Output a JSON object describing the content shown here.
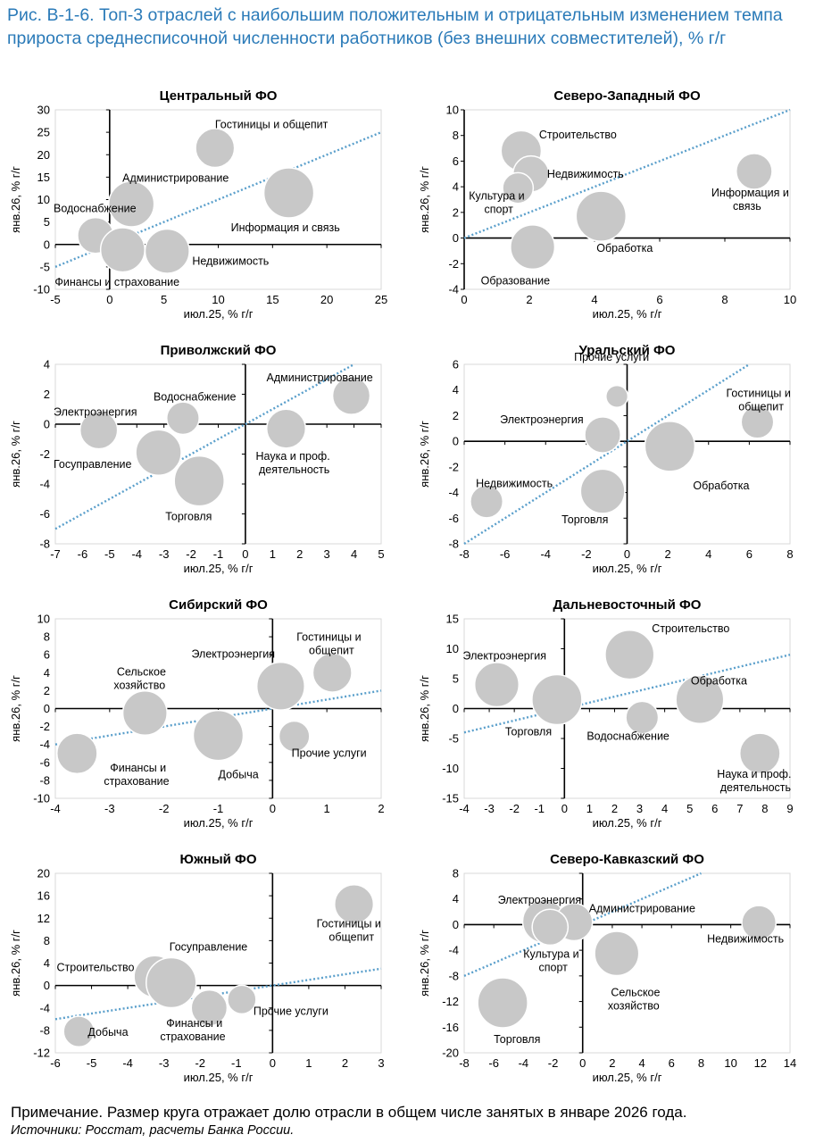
{
  "header": {
    "title": "Рис. В-1-6. Топ-3 отраслей с наибольшим положительным и отрицательным изменением темпа прироста среднесписочной численности работников (без внешних совместителей), % г/г"
  },
  "footer": {
    "note": "Примечание. Размер круга отражает долю отрасли в общем числе занятых в январе 2026 года.",
    "source": "Источники: Росстат, расчеты Банка России."
  },
  "colors": {
    "bubble": "#c8c8c8",
    "bubble_stroke": "#ffffff",
    "trend": "#5a9fcb",
    "axis": "#000000",
    "title": "#2a7ab8"
  },
  "chart_data": [
    {
      "type": "scatter",
      "title": "Центральный ФО",
      "xlabel": "июл.25, % г/г",
      "ylabel": "янв.26, % г/г",
      "xlim": [
        -5,
        25
      ],
      "ylim": [
        -10,
        30
      ],
      "xticks": [
        -5,
        0,
        5,
        10,
        15,
        20,
        25
      ],
      "yticks": [
        -10,
        -5,
        0,
        5,
        10,
        15,
        20,
        25,
        30
      ],
      "trend": [
        [
          -5,
          -5
        ],
        [
          25,
          25
        ]
      ],
      "points": [
        {
          "x": 9.7,
          "y": 21.5,
          "size": 0.55,
          "label": "Гостиницы и общепит"
        },
        {
          "x": 2.0,
          "y": 9.0,
          "size": 0.8,
          "label": "Администрирование"
        },
        {
          "x": 16.5,
          "y": 11.5,
          "size": 1.0,
          "label": "Информация и связь"
        },
        {
          "x": -1.3,
          "y": 2.0,
          "size": 0.45,
          "label": "Водоснабжение"
        },
        {
          "x": 1.2,
          "y": -1.2,
          "size": 0.75,
          "label": "Финансы и страхование"
        },
        {
          "x": 5.3,
          "y": -1.5,
          "size": 0.75,
          "label": "Недвижимость"
        }
      ]
    },
    {
      "type": "scatter",
      "title": "Северо-Западный ФО",
      "xlabel": "июл.25, % г/г",
      "ylabel": "янв.26, % г/г",
      "xlim": [
        0,
        10
      ],
      "ylim": [
        -4,
        10
      ],
      "xticks": [
        0,
        2,
        4,
        6,
        8,
        10
      ],
      "yticks": [
        -4,
        -2,
        0,
        2,
        4,
        6,
        8,
        10
      ],
      "trend": [
        [
          0,
          0
        ],
        [
          10,
          10
        ]
      ],
      "points": [
        {
          "x": 1.75,
          "y": 6.8,
          "size": 0.6,
          "label": "Строительство"
        },
        {
          "x": 2.05,
          "y": 5.0,
          "size": 0.45,
          "label": "Недвижимость"
        },
        {
          "x": 1.65,
          "y": 3.9,
          "size": 0.3,
          "label": "Культура и спорт"
        },
        {
          "x": 8.9,
          "y": 5.2,
          "size": 0.45,
          "label": "Информация и связь"
        },
        {
          "x": 4.2,
          "y": 1.7,
          "size": 1.0,
          "label": "Обработка"
        },
        {
          "x": 2.1,
          "y": -0.7,
          "size": 0.75,
          "label": "Образование"
        }
      ]
    },
    {
      "type": "scatter",
      "title": "Приволжский ФО",
      "xlabel": "июл.25, % г/г",
      "ylabel": "янв.26, % г/г",
      "xlim": [
        -7,
        5
      ],
      "ylim": [
        -8,
        4
      ],
      "xticks": [
        -7,
        -6,
        -5,
        -4,
        -3,
        -2,
        -1,
        0,
        1,
        2,
        3,
        4,
        5
      ],
      "yticks": [
        -8,
        -6,
        -4,
        -2,
        0,
        2,
        4
      ],
      "trend": [
        [
          -7,
          -7
        ],
        [
          4,
          4
        ]
      ],
      "points": [
        {
          "x": 3.9,
          "y": 1.9,
          "size": 0.5,
          "label": "Администрирование"
        },
        {
          "x": -2.3,
          "y": 0.4,
          "size": 0.35,
          "label": "Водоснабжение"
        },
        {
          "x": -5.4,
          "y": -0.4,
          "size": 0.5,
          "label": "Электроэнергия"
        },
        {
          "x": 1.5,
          "y": -0.3,
          "size": 0.55,
          "label": "Наука и проф. деятельность"
        },
        {
          "x": -3.2,
          "y": -1.9,
          "size": 0.8,
          "label": "Госуправление"
        },
        {
          "x": -1.7,
          "y": -3.8,
          "size": 1.0,
          "label": "Торговля"
        }
      ]
    },
    {
      "type": "scatter",
      "title": "Уральский ФО",
      "xlabel": "июл.25, % г/г",
      "ylabel": "янв.26, % г/г",
      "xlim": [
        -8,
        8
      ],
      "ylim": [
        -8,
        6
      ],
      "xticks": [
        -8,
        -6,
        -4,
        -2,
        0,
        2,
        4,
        6,
        8
      ],
      "yticks": [
        -8,
        -6,
        -4,
        -2,
        0,
        2,
        4,
        6
      ],
      "trend": [
        [
          -8,
          -8
        ],
        [
          6,
          6
        ]
      ],
      "points": [
        {
          "x": -0.5,
          "y": 3.5,
          "size": 0.12,
          "label": "Прочие услуги"
        },
        {
          "x": 6.4,
          "y": 1.5,
          "size": 0.35,
          "label": "Гостиницы и общепит"
        },
        {
          "x": -1.2,
          "y": 0.5,
          "size": 0.45,
          "label": "Электроэнергия"
        },
        {
          "x": 2.1,
          "y": -0.4,
          "size": 1.0,
          "label": "Обработка"
        },
        {
          "x": -6.9,
          "y": -4.7,
          "size": 0.35,
          "label": "Недвижимость"
        },
        {
          "x": -1.2,
          "y": -3.9,
          "size": 0.75,
          "label": "Торговля"
        }
      ]
    },
    {
      "type": "scatter",
      "title": "Сибирский ФО",
      "xlabel": "июл.25, % г/г",
      "ylabel": "янв.26, % г/г",
      "xlim": [
        -4,
        2
      ],
      "ylim": [
        -10,
        10
      ],
      "xticks": [
        -4,
        -3,
        -2,
        -1,
        0,
        1,
        2
      ],
      "yticks": [
        -10,
        -8,
        -6,
        -4,
        -2,
        0,
        2,
        4,
        6,
        8,
        10
      ],
      "trend": [
        [
          -4,
          -4
        ],
        [
          2,
          2
        ]
      ],
      "points": [
        {
          "x": 1.1,
          "y": 4.0,
          "size": 0.55,
          "label": "Гостиницы и общепит"
        },
        {
          "x": 0.15,
          "y": 2.5,
          "size": 0.9,
          "label": "Электроэнергия"
        },
        {
          "x": -2.35,
          "y": -0.5,
          "size": 0.75,
          "label": "Сельское хозяйство"
        },
        {
          "x": -1.0,
          "y": -3.0,
          "size": 1.0,
          "label": "Добыча"
        },
        {
          "x": 0.4,
          "y": -3.1,
          "size": 0.3,
          "label": "Прочие услуги"
        },
        {
          "x": -3.6,
          "y": -5.0,
          "size": 0.6,
          "label": "Финансы и страхование"
        }
      ]
    },
    {
      "type": "scatter",
      "title": "Дальневосточный ФО",
      "xlabel": "июл.25, % г/г",
      "ylabel": "янв.26, % г/г",
      "xlim": [
        -4,
        9
      ],
      "ylim": [
        -15,
        15
      ],
      "xticks": [
        -4,
        -3,
        -2,
        -1,
        0,
        1,
        2,
        3,
        4,
        5,
        6,
        7,
        8,
        9
      ],
      "yticks": [
        -15,
        -10,
        -5,
        0,
        5,
        10,
        15
      ],
      "trend": [
        [
          -4,
          -4
        ],
        [
          9,
          9
        ]
      ],
      "points": [
        {
          "x": 2.6,
          "y": 9.0,
          "size": 0.95,
          "label": "Строительство"
        },
        {
          "x": -2.7,
          "y": 4.0,
          "size": 0.75,
          "label": "Электроэнергия"
        },
        {
          "x": -0.3,
          "y": 1.5,
          "size": 1.0,
          "label": "Торговля"
        },
        {
          "x": 5.4,
          "y": 1.5,
          "size": 0.9,
          "label": "Обработка"
        },
        {
          "x": 3.1,
          "y": -1.5,
          "size": 0.35,
          "label": "Водоснабжение"
        },
        {
          "x": 7.8,
          "y": -7.5,
          "size": 0.6,
          "label": "Наука и проф. деятельность"
        }
      ]
    },
    {
      "type": "scatter",
      "title": "Южный ФО",
      "xlabel": "июл.25, % г/г",
      "ylabel": "янв.26, % г/г",
      "xlim": [
        -6,
        3
      ],
      "ylim": [
        -12,
        20
      ],
      "xticks": [
        -6,
        -5,
        -4,
        -3,
        -2,
        -1,
        0,
        1,
        2,
        3
      ],
      "yticks": [
        -12,
        -8,
        -4,
        0,
        4,
        8,
        12,
        16,
        20
      ],
      "trend": [
        [
          -6,
          -6
        ],
        [
          3,
          3
        ]
      ],
      "points": [
        {
          "x": 2.25,
          "y": 14.5,
          "size": 0.55,
          "label": "Гостиницы и общепит"
        },
        {
          "x": -3.25,
          "y": 1.6,
          "size": 0.65,
          "label": "Строительство"
        },
        {
          "x": -2.8,
          "y": 0.5,
          "size": 1.0,
          "label": "Госуправление"
        },
        {
          "x": -0.85,
          "y": -2.5,
          "size": 0.25,
          "label": "Прочие услуги"
        },
        {
          "x": -1.75,
          "y": -4.0,
          "size": 0.45,
          "label": "Финансы и страхование"
        },
        {
          "x": -5.35,
          "y": -8.2,
          "size": 0.3,
          "label": "Добыча"
        }
      ]
    },
    {
      "type": "scatter",
      "title": "Северо-Кавказский ФО",
      "xlabel": "июл.25, % г/г",
      "ylabel": "янв.26, % г/г",
      "xlim": [
        -8,
        14
      ],
      "ylim": [
        -20,
        8
      ],
      "xticks": [
        -8,
        -6,
        -4,
        -2,
        0,
        2,
        4,
        6,
        8,
        10,
        12,
        14
      ],
      "yticks": [
        -20,
        -16,
        -12,
        -8,
        -4,
        0,
        4,
        8
      ],
      "trend": [
        [
          -8,
          -8
        ],
        [
          8,
          8
        ]
      ],
      "points": [
        {
          "x": -2.6,
          "y": 0.5,
          "size": 0.7,
          "label": "Электроэнергия"
        },
        {
          "x": -0.6,
          "y": 0.4,
          "size": 0.5,
          "label": "Администрирование"
        },
        {
          "x": -2.2,
          "y": -0.4,
          "size": 0.45,
          "label": "Культура и спорт"
        },
        {
          "x": 11.9,
          "y": 0.3,
          "size": 0.4,
          "label": "Недвижимость"
        },
        {
          "x": 2.3,
          "y": -4.5,
          "size": 0.75,
          "label": "Сельское хозяйство"
        },
        {
          "x": -5.4,
          "y": -12.2,
          "size": 1.0,
          "label": "Торговля"
        }
      ]
    }
  ]
}
